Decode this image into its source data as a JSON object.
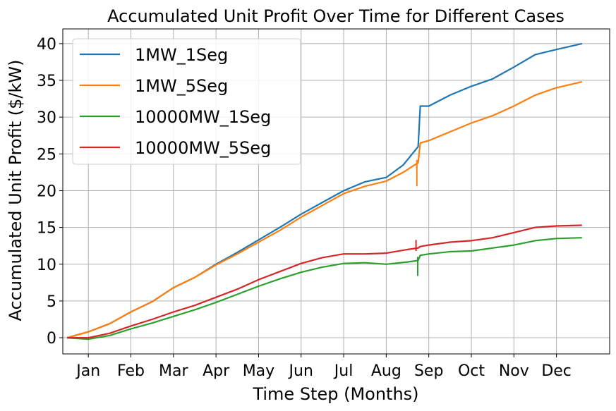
{
  "chart_data": {
    "type": "line",
    "title": "Accumulated Unit Profit Over Time for Different Cases",
    "xlabel": "Time Step (Months)",
    "ylabel": "Accumulated Unit Profit ($/kW)",
    "x_tick_labels": [
      "Jan",
      "Feb",
      "Mar",
      "Apr",
      "May",
      "Jun",
      "Jul",
      "Aug",
      "Sep",
      "Oct",
      "Nov",
      "Dec"
    ],
    "y_ticks": [
      0,
      5,
      10,
      15,
      20,
      25,
      30,
      35,
      40
    ],
    "xlim": [
      -0.6,
      12.25
    ],
    "ylim": [
      -2.2,
      42.0
    ],
    "grid": true,
    "legend_position": "top-left",
    "series": [
      {
        "name": "1MW_1Seg",
        "color": "#1f77b4",
        "points": [
          [
            -0.5,
            0.0
          ],
          [
            0.0,
            0.8
          ],
          [
            0.5,
            1.9
          ],
          [
            1.0,
            3.5
          ],
          [
            1.5,
            4.9
          ],
          [
            2.0,
            6.8
          ],
          [
            2.5,
            8.2
          ],
          [
            3.0,
            10.0
          ],
          [
            3.5,
            11.6
          ],
          [
            4.0,
            13.3
          ],
          [
            4.5,
            15.0
          ],
          [
            5.0,
            16.8
          ],
          [
            5.5,
            18.4
          ],
          [
            6.0,
            20.0
          ],
          [
            6.5,
            21.2
          ],
          [
            7.0,
            21.8
          ],
          [
            7.4,
            23.5
          ],
          [
            7.75,
            26.0
          ],
          [
            7.8,
            31.5
          ],
          [
            8.0,
            31.5
          ],
          [
            8.5,
            33.0
          ],
          [
            9.0,
            34.2
          ],
          [
            9.5,
            35.2
          ],
          [
            10.0,
            36.8
          ],
          [
            10.5,
            38.5
          ],
          [
            11.0,
            39.2
          ],
          [
            11.6,
            40.0
          ]
        ]
      },
      {
        "name": "1MW_5Seg",
        "color": "#ff7f0e",
        "points": [
          [
            -0.5,
            0.0
          ],
          [
            0.0,
            0.8
          ],
          [
            0.5,
            1.9
          ],
          [
            1.0,
            3.5
          ],
          [
            1.5,
            4.9
          ],
          [
            2.0,
            6.8
          ],
          [
            2.5,
            8.2
          ],
          [
            3.0,
            9.9
          ],
          [
            3.5,
            11.4
          ],
          [
            4.0,
            13.0
          ],
          [
            4.5,
            14.6
          ],
          [
            5.0,
            16.4
          ],
          [
            5.5,
            18.0
          ],
          [
            6.0,
            19.6
          ],
          [
            6.5,
            20.6
          ],
          [
            7.0,
            21.3
          ],
          [
            7.4,
            22.5
          ],
          [
            7.75,
            23.8
          ],
          [
            7.8,
            26.5
          ],
          [
            8.0,
            26.8
          ],
          [
            8.5,
            28.0
          ],
          [
            9.0,
            29.2
          ],
          [
            9.5,
            30.2
          ],
          [
            10.0,
            31.5
          ],
          [
            10.5,
            33.0
          ],
          [
            11.0,
            34.0
          ],
          [
            11.6,
            34.8
          ]
        ]
      },
      {
        "name": "10000MW_1Seg",
        "color": "#2ca02c",
        "points": [
          [
            -0.5,
            0.0
          ],
          [
            0.0,
            -0.2
          ],
          [
            0.5,
            0.3
          ],
          [
            1.0,
            1.2
          ],
          [
            1.5,
            2.0
          ],
          [
            2.0,
            2.9
          ],
          [
            2.5,
            3.8
          ],
          [
            3.0,
            4.8
          ],
          [
            3.5,
            5.9
          ],
          [
            4.0,
            7.0
          ],
          [
            4.5,
            8.0
          ],
          [
            5.0,
            8.9
          ],
          [
            5.5,
            9.6
          ],
          [
            6.0,
            10.1
          ],
          [
            6.5,
            10.2
          ],
          [
            7.0,
            10.0
          ],
          [
            7.5,
            10.3
          ],
          [
            7.75,
            10.5
          ],
          [
            7.8,
            11.2
          ],
          [
            8.0,
            11.4
          ],
          [
            8.5,
            11.7
          ],
          [
            9.0,
            11.8
          ],
          [
            9.5,
            12.2
          ],
          [
            10.0,
            12.6
          ],
          [
            10.5,
            13.2
          ],
          [
            11.0,
            13.5
          ],
          [
            11.6,
            13.6
          ]
        ]
      },
      {
        "name": "10000MW_5Seg",
        "color": "#d62728",
        "points": [
          [
            -0.5,
            0.0
          ],
          [
            0.0,
            0.0
          ],
          [
            0.5,
            0.6
          ],
          [
            1.0,
            1.6
          ],
          [
            1.5,
            2.5
          ],
          [
            2.0,
            3.5
          ],
          [
            2.5,
            4.4
          ],
          [
            3.0,
            5.5
          ],
          [
            3.5,
            6.6
          ],
          [
            4.0,
            7.9
          ],
          [
            4.5,
            9.0
          ],
          [
            5.0,
            10.1
          ],
          [
            5.5,
            10.9
          ],
          [
            6.0,
            11.4
          ],
          [
            6.5,
            11.4
          ],
          [
            7.0,
            11.5
          ],
          [
            7.5,
            12.0
          ],
          [
            7.75,
            12.2
          ],
          [
            7.8,
            12.4
          ],
          [
            8.0,
            12.6
          ],
          [
            8.5,
            13.0
          ],
          [
            9.0,
            13.2
          ],
          [
            9.5,
            13.6
          ],
          [
            10.0,
            14.3
          ],
          [
            10.5,
            15.0
          ],
          [
            11.0,
            15.2
          ],
          [
            11.6,
            15.3
          ]
        ]
      }
    ],
    "spikes": [
      {
        "series": "1MW_5Seg",
        "x": 7.72,
        "y_low": 20.6,
        "y_high": 24.2
      },
      {
        "series": "10000MW_1Seg",
        "x": 7.74,
        "y_low": 8.4,
        "y_high": 11.0
      },
      {
        "series": "10000MW_5Seg",
        "x": 7.7,
        "y_low": 11.8,
        "y_high": 13.3
      }
    ]
  }
}
